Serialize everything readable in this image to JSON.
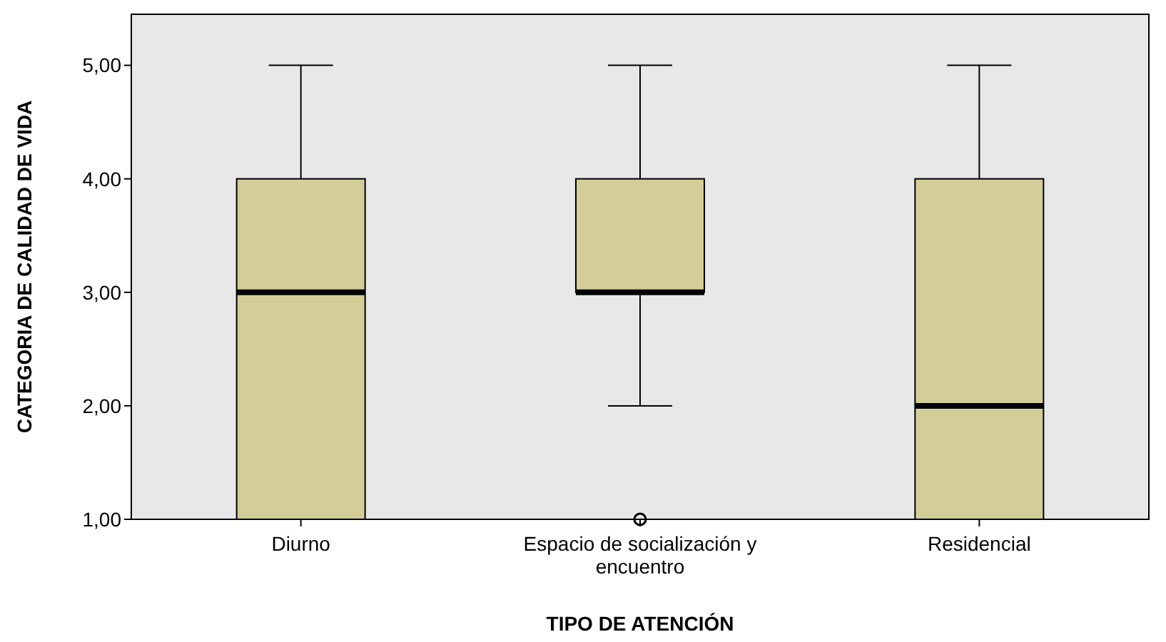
{
  "chart_data": {
    "type": "box",
    "xlabel": "TIPO DE ATENCIÓN",
    "ylabel": "CATEGORIA DE CALIDAD DE VIDA",
    "categories": [
      "Diurno",
      "Espacio de socialización y encuentro",
      "Residencial"
    ],
    "color": "#d3ce97",
    "boxes": [
      {
        "low": 1,
        "q1": 1,
        "median": 3,
        "q3": 4,
        "high": 5
      },
      {
        "low": 2,
        "q1": 3,
        "median": 3,
        "q3": 4,
        "high": 5,
        "outliers": [
          1
        ]
      },
      {
        "low": 1,
        "q1": 1,
        "median": 2,
        "q3": 4,
        "high": 5
      }
    ],
    "ylim": [
      1,
      5.45
    ],
    "yticks": [
      {
        "value": 1,
        "label": "1,00"
      },
      {
        "value": 2,
        "label": "2,00"
      },
      {
        "value": 3,
        "label": "3,00"
      },
      {
        "value": 4,
        "label": "4,00"
      },
      {
        "value": 5,
        "label": "5,00"
      }
    ],
    "grid": false
  }
}
